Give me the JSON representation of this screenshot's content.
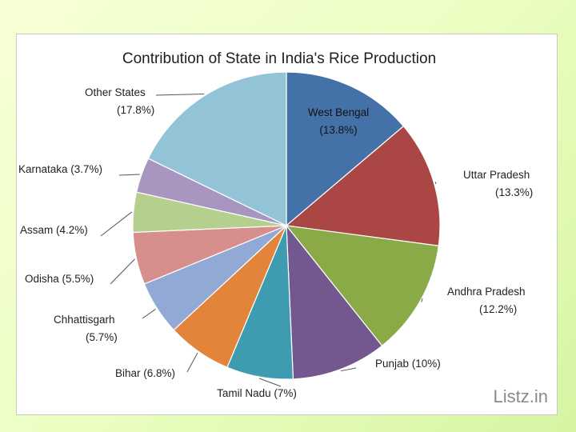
{
  "chart_data": {
    "type": "pie",
    "title": "Contribution of State in India's Rice Production",
    "slices": [
      {
        "name": "West Bengal",
        "pct_text": "(13.8%)",
        "value": 13.8,
        "color": "#4472a8"
      },
      {
        "name": "Uttar Pradesh",
        "pct_text": "(13.3%)",
        "value": 13.3,
        "color": "#aa4644"
      },
      {
        "name": "Andhra Pradesh",
        "pct_text": "(12.2%)",
        "value": 12.2,
        "color": "#8aaa48"
      },
      {
        "name": "Punjab",
        "pct_text": "(10%)",
        "value": 10.0,
        "color": "#72588f"
      },
      {
        "name": "Tamil Nadu",
        "pct_text": "(7%)",
        "value": 7.0,
        "color": "#3f9cb0"
      },
      {
        "name": "Bihar",
        "pct_text": "(6.8%)",
        "value": 6.8,
        "color": "#e2853a"
      },
      {
        "name": "Chhattisgarh",
        "pct_text": "(5.7%)",
        "value": 5.7,
        "color": "#92a9d6"
      },
      {
        "name": "Odisha",
        "pct_text": "(5.5%)",
        "value": 5.5,
        "color": "#d68f8d"
      },
      {
        "name": "Assam",
        "pct_text": "(4.2%)",
        "value": 4.2,
        "color": "#b5cf8f"
      },
      {
        "name": "Karnataka",
        "pct_text": "(3.7%)",
        "value": 3.7,
        "color": "#a896c1"
      },
      {
        "name": "Other States",
        "pct_text": "(17.8%)",
        "value": 17.8,
        "color": "#92c3d6"
      }
    ]
  },
  "watermark": "Listz.in"
}
